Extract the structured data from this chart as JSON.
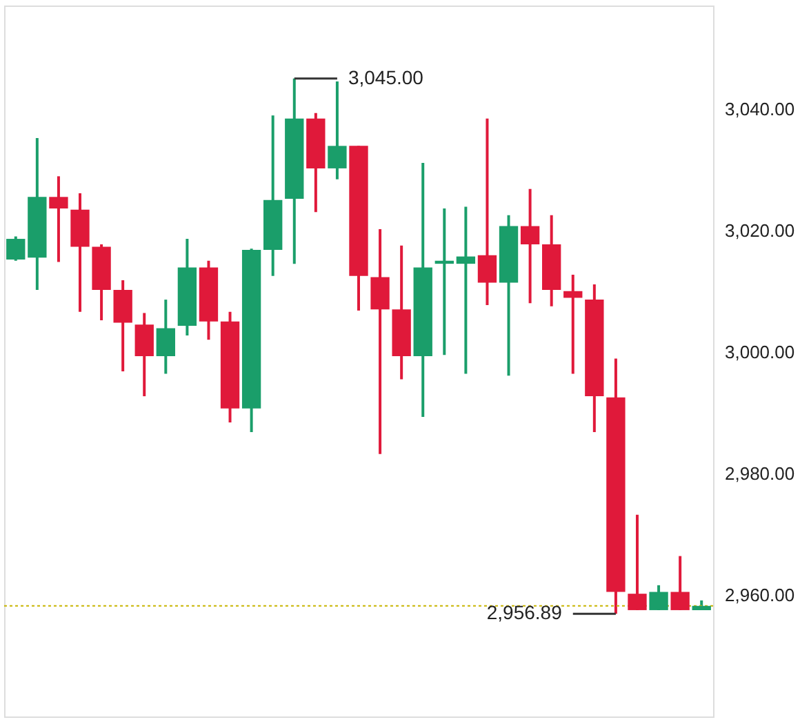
{
  "chart_data": {
    "type": "candlestick",
    "categories": [
      null,
      null,
      null,
      null,
      null,
      null,
      null,
      null,
      null,
      null,
      null,
      null,
      null,
      null,
      null,
      null,
      null,
      null,
      null,
      null,
      null,
      null,
      null,
      null,
      null,
      null,
      null,
      null,
      null,
      null,
      null,
      null,
      null
    ],
    "ohlc": [
      [
        3015.2,
        3019,
        3015,
        3018.6
      ],
      [
        3015.5,
        3035.2,
        3010.2,
        3025.5
      ],
      [
        3025.5,
        3028.9,
        3014.8,
        3023.6
      ],
      [
        3023.4,
        3026.1,
        3006.6,
        3017.3
      ],
      [
        3017.3,
        3017.7,
        3005.2,
        3010.2
      ],
      [
        3010.2,
        3011.8,
        2996.8,
        3004.8
      ],
      [
        3004.5,
        3006.4,
        2992.7,
        2999.3
      ],
      [
        2999.3,
        3008.6,
        2996.4,
        3003.9
      ],
      [
        3004.3,
        3018.6,
        3002.7,
        3013.9
      ],
      [
        3013.9,
        3015,
        3002,
        3005
      ],
      [
        3005,
        3006.6,
        2988.4,
        2990.7
      ],
      [
        2990.7,
        3017,
        2986.8,
        3016.8
      ],
      [
        3016.8,
        3038.9,
        3012.5,
        3025
      ],
      [
        3025.2,
        3045,
        3014.5,
        3038.4
      ],
      [
        3038.4,
        3039.3,
        3023,
        3030.2
      ],
      [
        3030.2,
        3044.5,
        3028.4,
        3033.9
      ],
      [
        3033.9,
        3033.9,
        3006.8,
        3012.5
      ],
      [
        3012.3,
        3020.2,
        2983.2,
        3007
      ],
      [
        3007,
        3017.5,
        2995.5,
        2999.3
      ],
      [
        2999.3,
        3031.1,
        2989.3,
        3013.9
      ],
      [
        3014.5,
        3023.6,
        2999.5,
        3015
      ],
      [
        3014.5,
        3023.9,
        2996.4,
        3015.7
      ],
      [
        3015.9,
        3038.4,
        3007.7,
        3011.4
      ],
      [
        3011.4,
        3022.5,
        2996.1,
        3020.7
      ],
      [
        3020.7,
        3026.8,
        3008,
        3017.7
      ],
      [
        3017.7,
        3022.5,
        3007.5,
        3010.2
      ],
      [
        3010,
        3012.7,
        2996.4,
        3008.9
      ],
      [
        3008.6,
        3011.1,
        2986.8,
        2992.7
      ],
      [
        2992.5,
        2998.9,
        2956.89,
        2960.5
      ],
      [
        2960.2,
        2973.2,
        2957.5,
        2957.5
      ],
      [
        2957.5,
        2961.6,
        2957.5,
        2960.5
      ],
      [
        2960.5,
        2966.4,
        2957.5,
        2957.5
      ],
      [
        2957.5,
        2959.1,
        2957.5,
        2958.2
      ]
    ],
    "colors": [
      "#1a9e6a",
      "#1a9e6a",
      "#e0193a",
      "#e0193a",
      "#e0193a",
      "#e0193a",
      "#e0193a",
      "#1a9e6a",
      "#1a9e6a",
      "#e0193a",
      "#e0193a",
      "#1a9e6a",
      "#1a9e6a",
      "#1a9e6a",
      "#e0193a",
      "#1a9e6a",
      "#e0193a",
      "#e0193a",
      "#e0193a",
      "#1a9e6a",
      "#1a9e6a",
      "#1a9e6a",
      "#e0193a",
      "#1a9e6a",
      "#e0193a",
      "#e0193a",
      "#e0193a",
      "#e0193a",
      "#e0193a",
      "#e0193a",
      "#1a9e6a",
      "#e0193a",
      "#1a9e6a"
    ],
    "ylim": [
      2940,
      3057
    ],
    "yticks": [
      {
        "value": 2960,
        "label": "2,960.00"
      },
      {
        "value": 2980,
        "label": "2,980.00"
      },
      {
        "value": 3000,
        "label": "3,000.00"
      },
      {
        "value": 3020,
        "label": "3,020.00"
      },
      {
        "value": 3040,
        "label": "3,040.00"
      }
    ],
    "ref_lines": [
      {
        "axis": "y",
        "value": 2958.2,
        "color": "#c8b400",
        "line_style": "dotted"
      }
    ],
    "annotations": [
      "3,045.00",
      "2,956.89"
    ],
    "grid": false
  }
}
